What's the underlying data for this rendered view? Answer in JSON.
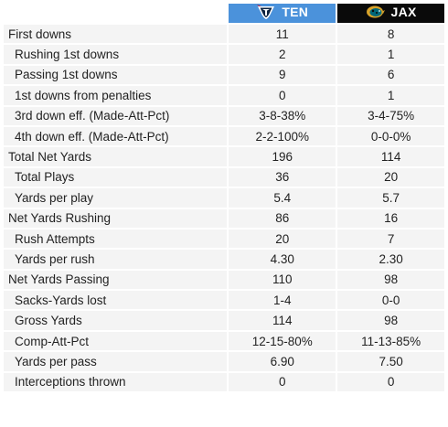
{
  "colors": {
    "ten_header": "#4b92db",
    "jax_header": "#0a0a0a",
    "row_bg": "#f4f4f4"
  },
  "teams": [
    {
      "abbr": "TEN",
      "logo_icon": "titans-logo-icon"
    },
    {
      "abbr": "JAX",
      "logo_icon": "jaguars-logo-icon"
    }
  ],
  "rows": [
    {
      "label": "First downs",
      "indent": false,
      "ten": "11",
      "jax": "8"
    },
    {
      "label": "Rushing 1st downs",
      "indent": true,
      "ten": "2",
      "jax": "1"
    },
    {
      "label": "Passing 1st downs",
      "indent": true,
      "ten": "9",
      "jax": "6"
    },
    {
      "label": "1st downs from penalties",
      "indent": true,
      "ten": "0",
      "jax": "1"
    },
    {
      "label": "3rd down eff. (Made-Att-Pct)",
      "indent": true,
      "ten": "3-8-38%",
      "jax": "3-4-75%"
    },
    {
      "label": "4th down eff. (Made-Att-Pct)",
      "indent": true,
      "ten": "2-2-100%",
      "jax": "0-0-0%"
    },
    {
      "label": "Total Net Yards",
      "indent": false,
      "ten": "196",
      "jax": "114"
    },
    {
      "label": "Total Plays",
      "indent": true,
      "ten": "36",
      "jax": "20"
    },
    {
      "label": "Yards per play",
      "indent": true,
      "ten": "5.4",
      "jax": "5.7"
    },
    {
      "label": "Net Yards Rushing",
      "indent": false,
      "ten": "86",
      "jax": "16"
    },
    {
      "label": "Rush Attempts",
      "indent": true,
      "ten": "20",
      "jax": "7"
    },
    {
      "label": "Yards per rush",
      "indent": true,
      "ten": "4.30",
      "jax": "2.30"
    },
    {
      "label": "Net Yards Passing",
      "indent": false,
      "ten": "110",
      "jax": "98"
    },
    {
      "label": "Sacks-Yards lost",
      "indent": true,
      "ten": "1-4",
      "jax": "0-0"
    },
    {
      "label": "Gross Yards",
      "indent": true,
      "ten": "114",
      "jax": "98"
    },
    {
      "label": "Comp-Att-Pct",
      "indent": true,
      "ten": "12-15-80%",
      "jax": "11-13-85%"
    },
    {
      "label": "Yards per pass",
      "indent": true,
      "ten": "6.90",
      "jax": "7.50"
    },
    {
      "label": "Interceptions thrown",
      "indent": true,
      "ten": "0",
      "jax": "0"
    }
  ]
}
